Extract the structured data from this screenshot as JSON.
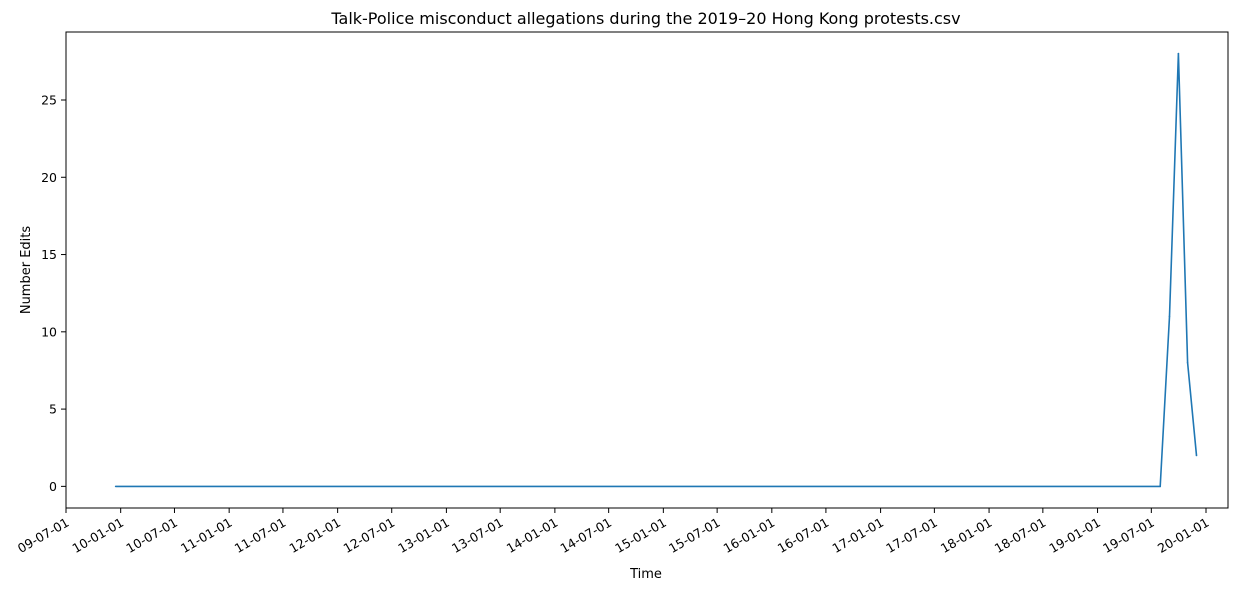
{
  "chart_data": {
    "type": "line",
    "title": "Talk-Police misconduct allegations during the 2019–20 Hong Kong protests.csv",
    "xlabel": "Time",
    "ylabel": "Number Edits",
    "xlim": [
      "2009-07-01",
      "2020-03-15"
    ],
    "ylim": [
      -1.4,
      29.4
    ],
    "grid": false,
    "x_ticks": [
      {
        "date": "2009-07-01",
        "label": "09-07-01"
      },
      {
        "date": "2010-01-01",
        "label": "10-01-01"
      },
      {
        "date": "2010-07-01",
        "label": "10-07-01"
      },
      {
        "date": "2011-01-01",
        "label": "11-01-01"
      },
      {
        "date": "2011-07-01",
        "label": "11-07-01"
      },
      {
        "date": "2012-01-01",
        "label": "12-01-01"
      },
      {
        "date": "2012-07-01",
        "label": "12-07-01"
      },
      {
        "date": "2013-01-01",
        "label": "13-01-01"
      },
      {
        "date": "2013-07-01",
        "label": "13-07-01"
      },
      {
        "date": "2014-01-01",
        "label": "14-01-01"
      },
      {
        "date": "2014-07-01",
        "label": "14-07-01"
      },
      {
        "date": "2015-01-01",
        "label": "15-01-01"
      },
      {
        "date": "2015-07-01",
        "label": "15-07-01"
      },
      {
        "date": "2016-01-01",
        "label": "16-01-01"
      },
      {
        "date": "2016-07-01",
        "label": "16-07-01"
      },
      {
        "date": "2017-01-01",
        "label": "17-01-01"
      },
      {
        "date": "2017-07-01",
        "label": "17-07-01"
      },
      {
        "date": "2018-01-01",
        "label": "18-01-01"
      },
      {
        "date": "2018-07-01",
        "label": "18-07-01"
      },
      {
        "date": "2019-01-01",
        "label": "19-01-01"
      },
      {
        "date": "2019-07-01",
        "label": "19-07-01"
      },
      {
        "date": "2020-01-01",
        "label": "20-01-01"
      }
    ],
    "y_ticks": [
      {
        "value": 0,
        "label": "0"
      },
      {
        "value": 5,
        "label": "5"
      },
      {
        "value": 10,
        "label": "10"
      },
      {
        "value": 15,
        "label": "15"
      },
      {
        "value": 20,
        "label": "20"
      },
      {
        "value": 25,
        "label": "25"
      }
    ],
    "series": [
      {
        "color": "#1f77b4",
        "points": [
          {
            "x": "2009-12-15",
            "y": 0
          },
          {
            "x": "2019-07-31",
            "y": 0
          },
          {
            "x": "2019-08-31",
            "y": 11
          },
          {
            "x": "2019-09-30",
            "y": 28
          },
          {
            "x": "2019-10-31",
            "y": 8
          },
          {
            "x": "2019-11-30",
            "y": 2
          }
        ]
      }
    ]
  }
}
